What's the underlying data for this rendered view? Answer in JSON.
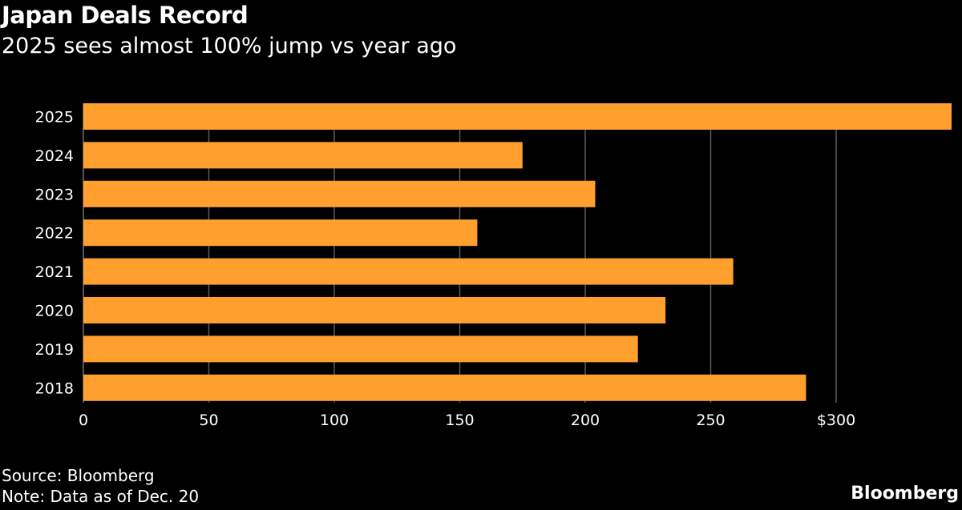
{
  "chart_data": {
    "type": "bar",
    "orientation": "horizontal",
    "title": "Japan Deals Record",
    "subtitle": "2025 sees almost 100% jump vs year ago",
    "categories": [
      "2025",
      "2024",
      "2023",
      "2022",
      "2021",
      "2020",
      "2019",
      "2018"
    ],
    "values": [
      346,
      175,
      204,
      157,
      259,
      232,
      221,
      288
    ],
    "xlim": [
      0,
      346
    ],
    "xticks": [
      0,
      50,
      100,
      150,
      200,
      250,
      300
    ],
    "xtick_labels": [
      "0",
      "50",
      "100",
      "150",
      "200",
      "250",
      "$300"
    ],
    "grid": true,
    "bar_color": "#ffa02e",
    "xlabel": "",
    "ylabel": ""
  },
  "footer": {
    "source": "Source: Bloomberg",
    "note": "Note: Data as of Dec. 20",
    "brand": "Bloomberg"
  }
}
